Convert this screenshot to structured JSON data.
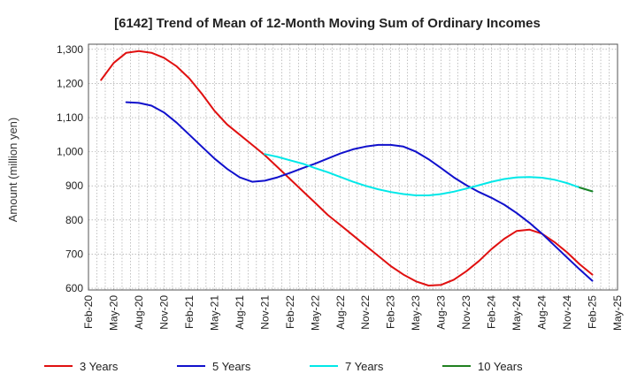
{
  "chart_data": {
    "type": "line",
    "title": "[6142]  Trend of Mean of 12-Month Moving Sum of Ordinary Incomes",
    "xlabel": "",
    "ylabel": "Amount (million yen)",
    "ylim": [
      595,
      1315
    ],
    "yticks": [
      600,
      700,
      800,
      900,
      1000,
      1100,
      1200,
      1300
    ],
    "ytick_labels": [
      "600",
      "700",
      "800",
      "900",
      "1,000",
      "1,100",
      "1,200",
      "1,300"
    ],
    "x_labels": [
      "Feb-20",
      "May-20",
      "Aug-20",
      "Nov-20",
      "Feb-21",
      "May-21",
      "Aug-21",
      "Nov-21",
      "Feb-22",
      "May-22",
      "Aug-22",
      "Nov-22",
      "Feb-23",
      "May-23",
      "Aug-23",
      "Nov-23",
      "Feb-24",
      "May-24",
      "Aug-24",
      "Nov-24",
      "Feb-25",
      "May-25"
    ],
    "grid": true,
    "legend_position": "bottom",
    "series": [
      {
        "name": "3 Years",
        "color": "#e01010",
        "values": [
          1210,
          1260,
          1290,
          1295,
          1290,
          1275,
          1250,
          1215,
          1170,
          1120,
          1080,
          1050,
          1020,
          990,
          955,
          920,
          885,
          850,
          815,
          785,
          755,
          725,
          695,
          665,
          640,
          620,
          608,
          610,
          625,
          650,
          680,
          715,
          745,
          768,
          772,
          760,
          735,
          705,
          670,
          640
        ]
      },
      {
        "name": "5 Years",
        "color": "#1010cc",
        "values": [
          1145,
          1143,
          1135,
          1115,
          1085,
          1050,
          1015,
          980,
          950,
          925,
          912,
          915,
          925,
          938,
          952,
          965,
          980,
          995,
          1007,
          1015,
          1020,
          1020,
          1015,
          1000,
          978,
          952,
          925,
          902,
          882,
          865,
          845,
          820,
          792,
          760,
          725,
          690,
          655,
          622
        ]
      },
      {
        "name": "7 Years",
        "color": "#00e8e8",
        "values": [
          993,
          985,
          975,
          965,
          952,
          940,
          926,
          912,
          900,
          890,
          882,
          876,
          872,
          872,
          876,
          883,
          892,
          902,
          912,
          920,
          925,
          926,
          924,
          918,
          908,
          895,
          884
        ]
      },
      {
        "name": "10 Years",
        "color": "#208020",
        "values": [
          895,
          884
        ]
      }
    ]
  }
}
